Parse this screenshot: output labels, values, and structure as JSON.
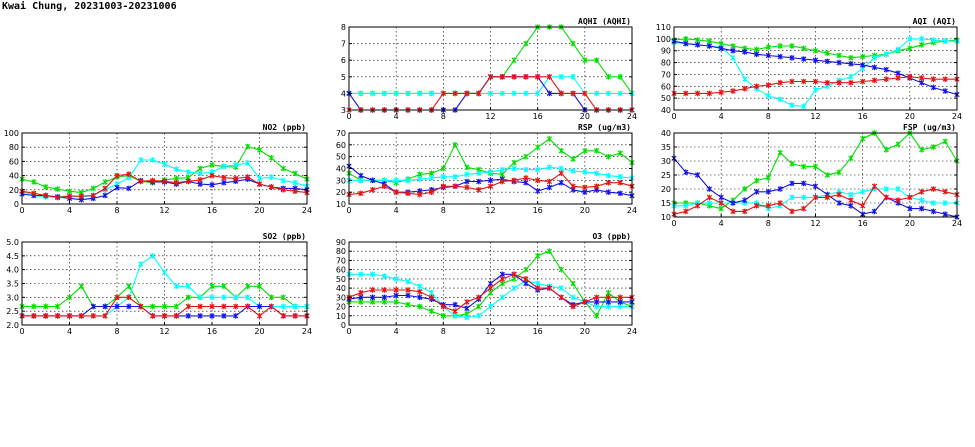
{
  "page_title": "Kwai Chung, 20231003-20231006",
  "colors": {
    "day1": "#00e000",
    "day2": "#00ffff",
    "day3": "#1414e6",
    "day4": "#e61414"
  },
  "chart_data": [
    {
      "id": "aqhi",
      "type": "line",
      "title": "AQHI (AQHI)",
      "xlim": [
        0,
        24
      ],
      "ylim": [
        3,
        8
      ],
      "xticks": [
        0,
        4,
        8,
        12,
        16,
        20,
        24
      ],
      "yticks": [
        3,
        4,
        5,
        6,
        7,
        8
      ],
      "grid": true,
      "x": [
        0,
        1,
        2,
        3,
        4,
        5,
        6,
        7,
        8,
        9,
        10,
        11,
        12,
        13,
        14,
        15,
        16,
        17,
        18,
        19,
        20,
        21,
        22,
        23,
        24
      ],
      "series": [
        {
          "color_key": "day1",
          "values": [
            4,
            4,
            4,
            4,
            4,
            4,
            4,
            4,
            4,
            4,
            4,
            4,
            5,
            5,
            6,
            7,
            8,
            8,
            8,
            7,
            6,
            6,
            5,
            5,
            4
          ]
        },
        {
          "color_key": "day2",
          "values": [
            4,
            4,
            4,
            4,
            4,
            4,
            4,
            4,
            4,
            4,
            4,
            4,
            4,
            4,
            4,
            4,
            4,
            5,
            5,
            5,
            4,
            4,
            4,
            4,
            4
          ]
        },
        {
          "color_key": "day3",
          "values": [
            4,
            3,
            3,
            3,
            3,
            3,
            3,
            3,
            3,
            3,
            4,
            4,
            5,
            5,
            5,
            5,
            5,
            4,
            4,
            4,
            3,
            3,
            3,
            3,
            3
          ]
        },
        {
          "color_key": "day4",
          "values": [
            3,
            3,
            3,
            3,
            3,
            3,
            3,
            3,
            4,
            4,
            4,
            4,
            5,
            5,
            5,
            5,
            5,
            5,
            4,
            4,
            4,
            3,
            3,
            3,
            3
          ]
        }
      ]
    },
    {
      "id": "aqi",
      "type": "line",
      "title": "AQI (AQI)",
      "xlim": [
        0,
        24
      ],
      "ylim": [
        40,
        110
      ],
      "xticks": [
        0,
        4,
        8,
        12,
        16,
        20,
        24
      ],
      "yticks": [
        40,
        50,
        60,
        70,
        80,
        90,
        100,
        110
      ],
      "grid": true,
      "x": [
        0,
        1,
        2,
        3,
        4,
        5,
        6,
        7,
        8,
        9,
        10,
        11,
        12,
        13,
        14,
        15,
        16,
        17,
        18,
        19,
        20,
        21,
        22,
        23,
        24
      ],
      "series": [
        {
          "color_key": "day1",
          "values": [
            99,
            100,
            99,
            98,
            96,
            94,
            92,
            91,
            93,
            94,
            94,
            92,
            90,
            88,
            86,
            84,
            85,
            86,
            87,
            90,
            92,
            95,
            97,
            98,
            99
          ]
        },
        {
          "color_key": "day2",
          "values": [
            97,
            96,
            95,
            94,
            93,
            84,
            66,
            58,
            52,
            49,
            44,
            43,
            57,
            60,
            65,
            68,
            75,
            84,
            87,
            91,
            100,
            100,
            99,
            98,
            98
          ]
        },
        {
          "color_key": "day3",
          "values": [
            98,
            96,
            95,
            94,
            92,
            90,
            89,
            87,
            86,
            85,
            84,
            83,
            82,
            81,
            80,
            79,
            78,
            76,
            74,
            71,
            67,
            63,
            59,
            56,
            53
          ]
        },
        {
          "color_key": "day4",
          "values": [
            54,
            54,
            54,
            54,
            55,
            56,
            58,
            60,
            61,
            63,
            64,
            64,
            64,
            63,
            63,
            63,
            64,
            65,
            66,
            67,
            68,
            67,
            66,
            66,
            66
          ]
        }
      ]
    },
    {
      "id": "no2",
      "type": "line",
      "title": "NO2 (ppb)",
      "xlim": [
        0,
        24
      ],
      "ylim": [
        0,
        100
      ],
      "xticks": [
        0,
        4,
        8,
        12,
        16,
        20,
        24
      ],
      "yticks": [
        0,
        20,
        40,
        60,
        80,
        100
      ],
      "grid": true,
      "x": [
        0,
        1,
        2,
        3,
        4,
        5,
        6,
        7,
        8,
        9,
        10,
        11,
        12,
        13,
        14,
        15,
        16,
        17,
        18,
        19,
        20,
        21,
        22,
        23,
        24
      ],
      "series": [
        {
          "color_key": "day1",
          "values": [
            35,
            31,
            24,
            21,
            18,
            16,
            22,
            31,
            38,
            40,
            32,
            30,
            34,
            36,
            37,
            50,
            55,
            53,
            52,
            81,
            76,
            65,
            50,
            43,
            35
          ]
        },
        {
          "color_key": "day2",
          "values": [
            18,
            12,
            10,
            10,
            12,
            10,
            12,
            20,
            28,
            37,
            62,
            62,
            56,
            49,
            45,
            43,
            45,
            53,
            55,
            58,
            36,
            38,
            33,
            30,
            25
          ]
        },
        {
          "color_key": "day3",
          "values": [
            14,
            12,
            12,
            10,
            8,
            6,
            8,
            12,
            23,
            22,
            33,
            31,
            31,
            28,
            32,
            28,
            27,
            30,
            32,
            35,
            28,
            24,
            22,
            22,
            20
          ]
        },
        {
          "color_key": "day4",
          "values": [
            18,
            15,
            12,
            9,
            11,
            11,
            12,
            22,
            40,
            42,
            32,
            33,
            32,
            30,
            32,
            34,
            40,
            37,
            36,
            38,
            28,
            24,
            20,
            18,
            16
          ]
        }
      ]
    },
    {
      "id": "rsp",
      "type": "line",
      "title": "RSP (ug/m3)",
      "xlim": [
        0,
        24
      ],
      "ylim": [
        10,
        70
      ],
      "xticks": [
        0,
        4,
        8,
        12,
        16,
        20,
        24
      ],
      "yticks": [
        10,
        20,
        30,
        40,
        50,
        60,
        70
      ],
      "grid": true,
      "x": [
        0,
        1,
        2,
        3,
        4,
        5,
        6,
        7,
        8,
        9,
        10,
        11,
        12,
        13,
        14,
        15,
        16,
        17,
        18,
        19,
        20,
        21,
        22,
        23,
        24
      ],
      "series": [
        {
          "color_key": "day1",
          "values": [
            36,
            30,
            30,
            30,
            28,
            31,
            35,
            36,
            40,
            60,
            41,
            39,
            36,
            35,
            45,
            50,
            58,
            65,
            55,
            48,
            55,
            55,
            50,
            53,
            45
          ]
        },
        {
          "color_key": "day2",
          "values": [
            30,
            30,
            30,
            30,
            30,
            30,
            31,
            32,
            33,
            33,
            35,
            36,
            37,
            39,
            40,
            39,
            39,
            41,
            40,
            38,
            37,
            36,
            34,
            33,
            32
          ]
        },
        {
          "color_key": "day3",
          "values": [
            42,
            34,
            30,
            27,
            20,
            20,
            21,
            22,
            24,
            25,
            29,
            29,
            30,
            31,
            29,
            28,
            21,
            24,
            28,
            22,
            20,
            22,
            20,
            19,
            17
          ]
        },
        {
          "color_key": "day4",
          "values": [
            18,
            19,
            22,
            25,
            20,
            19,
            18,
            20,
            25,
            25,
            24,
            22,
            25,
            29,
            30,
            32,
            30,
            29,
            36,
            25,
            24,
            25,
            28,
            28,
            25
          ]
        }
      ]
    },
    {
      "id": "fsp",
      "type": "line",
      "title": "FSP (ug/m3)",
      "xlim": [
        0,
        24
      ],
      "ylim": [
        10,
        40
      ],
      "xticks": [
        0,
        4,
        8,
        12,
        16,
        20,
        24
      ],
      "yticks": [
        10,
        15,
        20,
        25,
        30,
        35,
        40
      ],
      "grid": true,
      "x": [
        0,
        1,
        2,
        3,
        4,
        5,
        6,
        7,
        8,
        9,
        10,
        11,
        12,
        13,
        14,
        15,
        16,
        17,
        18,
        19,
        20,
        21,
        22,
        23,
        24
      ],
      "series": [
        {
          "color_key": "day1",
          "values": [
            15,
            15,
            15,
            14,
            13,
            16,
            20,
            23,
            24,
            33,
            29,
            28,
            28,
            25,
            26,
            31,
            38,
            40,
            34,
            36,
            40,
            34,
            35,
            37,
            30
          ]
        },
        {
          "color_key": "day2",
          "values": [
            14,
            14,
            15,
            15,
            15,
            15,
            15,
            15,
            13,
            14,
            17,
            17,
            17,
            18,
            19,
            18,
            19,
            20,
            20,
            20,
            17,
            16,
            15,
            15,
            15
          ]
        },
        {
          "color_key": "day3",
          "values": [
            31,
            26,
            25,
            20,
            17,
            15,
            16,
            19,
            19,
            20,
            22,
            22,
            21,
            18,
            15,
            14,
            11,
            12,
            17,
            15,
            13,
            13,
            12,
            11,
            10
          ]
        },
        {
          "color_key": "day4",
          "values": [
            11,
            12,
            14,
            17,
            15,
            12,
            12,
            14,
            14,
            15,
            12,
            13,
            17,
            17,
            18,
            16,
            14,
            21,
            17,
            16,
            17,
            19,
            20,
            19,
            18
          ]
        }
      ]
    },
    {
      "id": "so2",
      "type": "line",
      "title": "SO2 (ppb)",
      "xlim": [
        0,
        24
      ],
      "ylim": [
        2.0,
        5.0
      ],
      "xticks": [
        0,
        4,
        8,
        12,
        16,
        20,
        24
      ],
      "yticks": [
        2.0,
        2.5,
        3.0,
        3.5,
        4.0,
        4.5,
        5.0
      ],
      "grid": true,
      "x": [
        0,
        1,
        2,
        3,
        4,
        5,
        6,
        7,
        8,
        9,
        10,
        11,
        12,
        13,
        14,
        15,
        16,
        17,
        18,
        19,
        20,
        21,
        22,
        23,
        24
      ],
      "series": [
        {
          "color_key": "day1",
          "values": [
            2.67,
            2.67,
            2.67,
            2.67,
            3.0,
            3.4,
            2.67,
            2.67,
            3.0,
            3.4,
            2.67,
            2.67,
            2.67,
            2.67,
            3.0,
            3.0,
            3.4,
            3.4,
            3.0,
            3.4,
            3.4,
            3.0,
            3.0,
            2.67,
            2.67
          ]
        },
        {
          "color_key": "day2",
          "values": [
            2.33,
            2.33,
            2.33,
            2.33,
            2.33,
            2.33,
            2.33,
            2.33,
            2.67,
            3.0,
            4.2,
            4.5,
            3.9,
            3.4,
            3.4,
            3.0,
            3.0,
            3.0,
            3.0,
            3.0,
            2.67,
            2.67,
            2.67,
            2.67,
            2.67
          ]
        },
        {
          "color_key": "day3",
          "values": [
            2.33,
            2.33,
            2.33,
            2.33,
            2.33,
            2.33,
            2.67,
            2.67,
            2.67,
            2.67,
            2.67,
            2.33,
            2.33,
            2.33,
            2.33,
            2.33,
            2.33,
            2.33,
            2.33,
            2.67,
            2.67,
            2.67,
            2.33,
            2.33,
            2.33
          ]
        },
        {
          "color_key": "day4",
          "values": [
            2.33,
            2.33,
            2.33,
            2.33,
            2.33,
            2.33,
            2.33,
            2.33,
            3.0,
            3.0,
            2.67,
            2.33,
            2.33,
            2.33,
            2.67,
            2.67,
            2.67,
            2.67,
            2.67,
            2.67,
            2.33,
            2.67,
            2.33,
            2.33,
            2.33
          ]
        }
      ]
    },
    {
      "id": "o3",
      "type": "line",
      "title": "O3 (ppb)",
      "xlim": [
        0,
        24
      ],
      "ylim": [
        0,
        90
      ],
      "xticks": [
        0,
        4,
        8,
        12,
        16,
        20,
        24
      ],
      "yticks": [
        0,
        10,
        20,
        30,
        40,
        50,
        60,
        70,
        80,
        90
      ],
      "grid": true,
      "x": [
        0,
        1,
        2,
        3,
        4,
        5,
        6,
        7,
        8,
        9,
        10,
        11,
        12,
        13,
        14,
        15,
        16,
        17,
        18,
        19,
        20,
        21,
        22,
        23,
        24
      ],
      "series": [
        {
          "color_key": "day1",
          "values": [
            25,
            25,
            25,
            25,
            25,
            22,
            20,
            15,
            10,
            10,
            12,
            20,
            35,
            45,
            50,
            60,
            75,
            80,
            60,
            45,
            25,
            10,
            35,
            25,
            20
          ]
        },
        {
          "color_key": "day2",
          "values": [
            55,
            55,
            55,
            53,
            50,
            47,
            42,
            35,
            20,
            10,
            8,
            10,
            20,
            30,
            40,
            48,
            45,
            42,
            40,
            30,
            25,
            20,
            20,
            20,
            20
          ]
        },
        {
          "color_key": "day3",
          "values": [
            28,
            30,
            30,
            30,
            32,
            32,
            30,
            28,
            22,
            22,
            18,
            28,
            45,
            55,
            55,
            45,
            38,
            40,
            30,
            22,
            25,
            25,
            25,
            25,
            25
          ]
        },
        {
          "color_key": "day4",
          "values": [
            30,
            35,
            38,
            38,
            38,
            38,
            36,
            30,
            20,
            15,
            25,
            30,
            40,
            50,
            55,
            50,
            40,
            40,
            30,
            20,
            25,
            30,
            30,
            30,
            30
          ]
        }
      ]
    }
  ]
}
